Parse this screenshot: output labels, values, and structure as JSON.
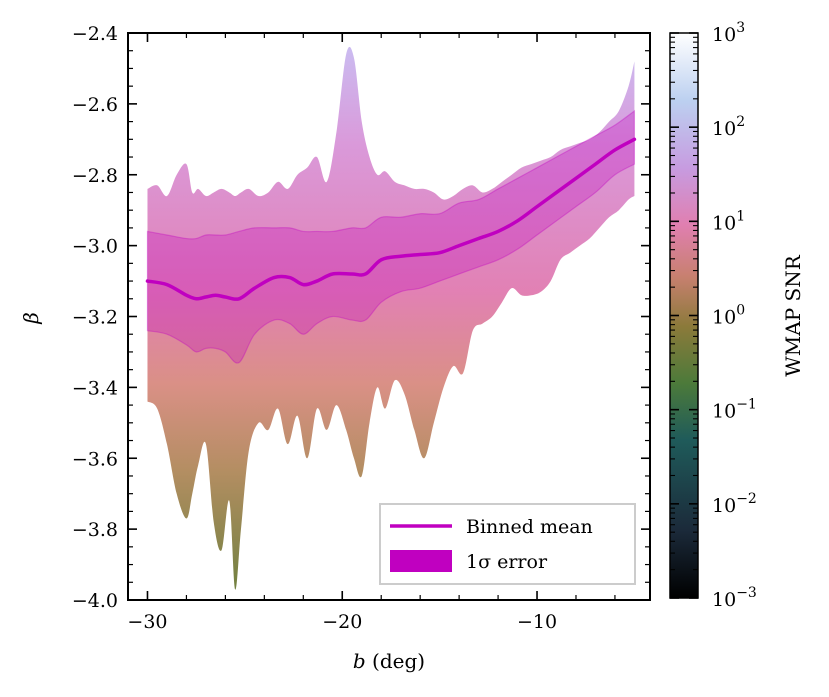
{
  "chart_data": {
    "type": "area",
    "xlabel": "b (deg)",
    "ylabel": "β",
    "xlim": [
      -31,
      -4.2
    ],
    "ylim": [
      -4.0,
      -2.4
    ],
    "x_ticks": [
      -30,
      -20,
      -10
    ],
    "x_tick_labels": [
      "−30",
      "−20",
      "−10"
    ],
    "y_ticks": [
      -4.0,
      -3.8,
      -3.6,
      -3.4,
      -3.2,
      -3.0,
      -2.8,
      -2.6,
      -2.4
    ],
    "y_tick_labels": [
      "−4.0",
      "−3.8",
      "−3.6",
      "−3.4",
      "−3.2",
      "−3.0",
      "−2.8",
      "−2.6",
      "−2.4"
    ],
    "grid": false,
    "legend_position": "lower-right",
    "legend": [
      "Binned mean",
      "1σ error"
    ],
    "series": [
      {
        "name": "Binned mean",
        "color": "#c000c0",
        "x": [
          -30,
          -29,
          -28,
          -27.5,
          -27,
          -26.5,
          -26,
          -25.3,
          -24.5,
          -23.5,
          -22.7,
          -22,
          -21.3,
          -20.5,
          -19.5,
          -18.8,
          -18,
          -17,
          -16,
          -15,
          -14,
          -13,
          -12,
          -11,
          -10,
          -9,
          -8,
          -7,
          -6,
          -5
        ],
        "y": [
          -3.1,
          -3.11,
          -3.14,
          -3.15,
          -3.145,
          -3.14,
          -3.145,
          -3.15,
          -3.12,
          -3.09,
          -3.09,
          -3.11,
          -3.1,
          -3.08,
          -3.08,
          -3.08,
          -3.04,
          -3.03,
          -3.025,
          -3.02,
          -3.0,
          -2.98,
          -2.96,
          -2.93,
          -2.89,
          -2.85,
          -2.81,
          -2.77,
          -2.73,
          -2.7
        ]
      },
      {
        "name": "1σ error",
        "color": "#c000c0",
        "x": [
          -30,
          -29,
          -28,
          -27.5,
          -27,
          -26.5,
          -26,
          -25.3,
          -24.5,
          -23.5,
          -22.7,
          -22,
          -21.3,
          -20.5,
          -19.5,
          -18.8,
          -18,
          -17,
          -16,
          -15,
          -14,
          -13,
          -12,
          -11,
          -10,
          -9,
          -8,
          -7,
          -6,
          -5
        ],
        "lower": [
          -3.24,
          -3.25,
          -3.28,
          -3.3,
          -3.29,
          -3.29,
          -3.3,
          -3.33,
          -3.25,
          -3.21,
          -3.22,
          -3.25,
          -3.22,
          -3.2,
          -3.21,
          -3.21,
          -3.16,
          -3.13,
          -3.12,
          -3.1,
          -3.08,
          -3.06,
          -3.04,
          -3.01,
          -2.97,
          -2.93,
          -2.89,
          -2.85,
          -2.8,
          -2.77
        ],
        "upper": [
          -2.96,
          -2.97,
          -2.98,
          -2.98,
          -2.97,
          -2.97,
          -2.97,
          -2.96,
          -2.95,
          -2.95,
          -2.95,
          -2.96,
          -2.96,
          -2.96,
          -2.95,
          -2.95,
          -2.92,
          -2.92,
          -2.91,
          -2.91,
          -2.88,
          -2.87,
          -2.84,
          -2.81,
          -2.78,
          -2.75,
          -2.72,
          -2.69,
          -2.66,
          -2.62
        ]
      }
    ],
    "scatter_envelope": {
      "x": [
        -30,
        -29.5,
        -29,
        -28.5,
        -28,
        -27.7,
        -27.4,
        -27,
        -26.6,
        -26.2,
        -25.8,
        -25.5,
        -25.2,
        -24.8,
        -24.3,
        -23.8,
        -23.3,
        -22.8,
        -22.3,
        -21.8,
        -21.3,
        -20.8,
        -20.3,
        -19.8,
        -19.4,
        -19.0,
        -18.6,
        -18.2,
        -17.8,
        -17.3,
        -16.8,
        -16.3,
        -15.8,
        -15.3,
        -14.8,
        -14.3,
        -13.8,
        -13.3,
        -12.8,
        -12.3,
        -11.8,
        -11.3,
        -10.8,
        -10.3,
        -9.8,
        -9.3,
        -8.8,
        -8.3,
        -7.8,
        -7.3,
        -6.8,
        -6.3,
        -5.8,
        -5.3,
        -5.0
      ],
      "upper": [
        -2.84,
        -2.83,
        -2.86,
        -2.8,
        -2.77,
        -2.85,
        -2.84,
        -2.86,
        -2.85,
        -2.84,
        -2.85,
        -2.86,
        -2.85,
        -2.84,
        -2.86,
        -2.85,
        -2.82,
        -2.84,
        -2.8,
        -2.78,
        -2.75,
        -2.82,
        -2.68,
        -2.46,
        -2.47,
        -2.65,
        -2.75,
        -2.8,
        -2.79,
        -2.82,
        -2.83,
        -2.84,
        -2.84,
        -2.85,
        -2.87,
        -2.86,
        -2.84,
        -2.83,
        -2.85,
        -2.84,
        -2.82,
        -2.8,
        -2.78,
        -2.77,
        -2.76,
        -2.75,
        -2.73,
        -2.72,
        -2.71,
        -2.7,
        -2.68,
        -2.65,
        -2.62,
        -2.55,
        -2.48
      ],
      "lower": [
        -3.44,
        -3.46,
        -3.56,
        -3.7,
        -3.77,
        -3.7,
        -3.62,
        -3.56,
        -3.78,
        -3.86,
        -3.72,
        -3.97,
        -3.8,
        -3.58,
        -3.5,
        -3.52,
        -3.46,
        -3.56,
        -3.48,
        -3.6,
        -3.46,
        -3.52,
        -3.45,
        -3.52,
        -3.6,
        -3.65,
        -3.5,
        -3.4,
        -3.46,
        -3.38,
        -3.42,
        -3.52,
        -3.6,
        -3.5,
        -3.4,
        -3.34,
        -3.36,
        -3.24,
        -3.22,
        -3.2,
        -3.16,
        -3.12,
        -3.14,
        -3.14,
        -3.13,
        -3.1,
        -3.04,
        -3.02,
        -3.0,
        -2.98,
        -2.95,
        -2.92,
        -2.9,
        -2.87,
        -2.86
      ],
      "colorscale_snr": [
        0.5,
        1,
        3,
        10,
        30,
        100
      ]
    },
    "colorbar": {
      "label": "WMAP SNR",
      "scale": "log",
      "range": [
        0.001,
        1000
      ],
      "ticks": [
        0.001,
        0.01,
        0.1,
        1,
        10,
        100,
        1000
      ],
      "tick_labels": [
        {
          "base": "10",
          "exp": "−3"
        },
        {
          "base": "10",
          "exp": "−2"
        },
        {
          "base": "10",
          "exp": "−1"
        },
        {
          "base": "10",
          "exp": "0"
        },
        {
          "base": "10",
          "exp": "1"
        },
        {
          "base": "10",
          "exp": "2"
        },
        {
          "base": "10",
          "exp": "3"
        }
      ],
      "colormap_stops": [
        "#000000",
        "#1b2a3a",
        "#1f5b5a",
        "#4c7a3a",
        "#8b7a3a",
        "#c88070",
        "#e07fb0",
        "#c79be0",
        "#bcd0f0",
        "#ffffff"
      ]
    }
  }
}
